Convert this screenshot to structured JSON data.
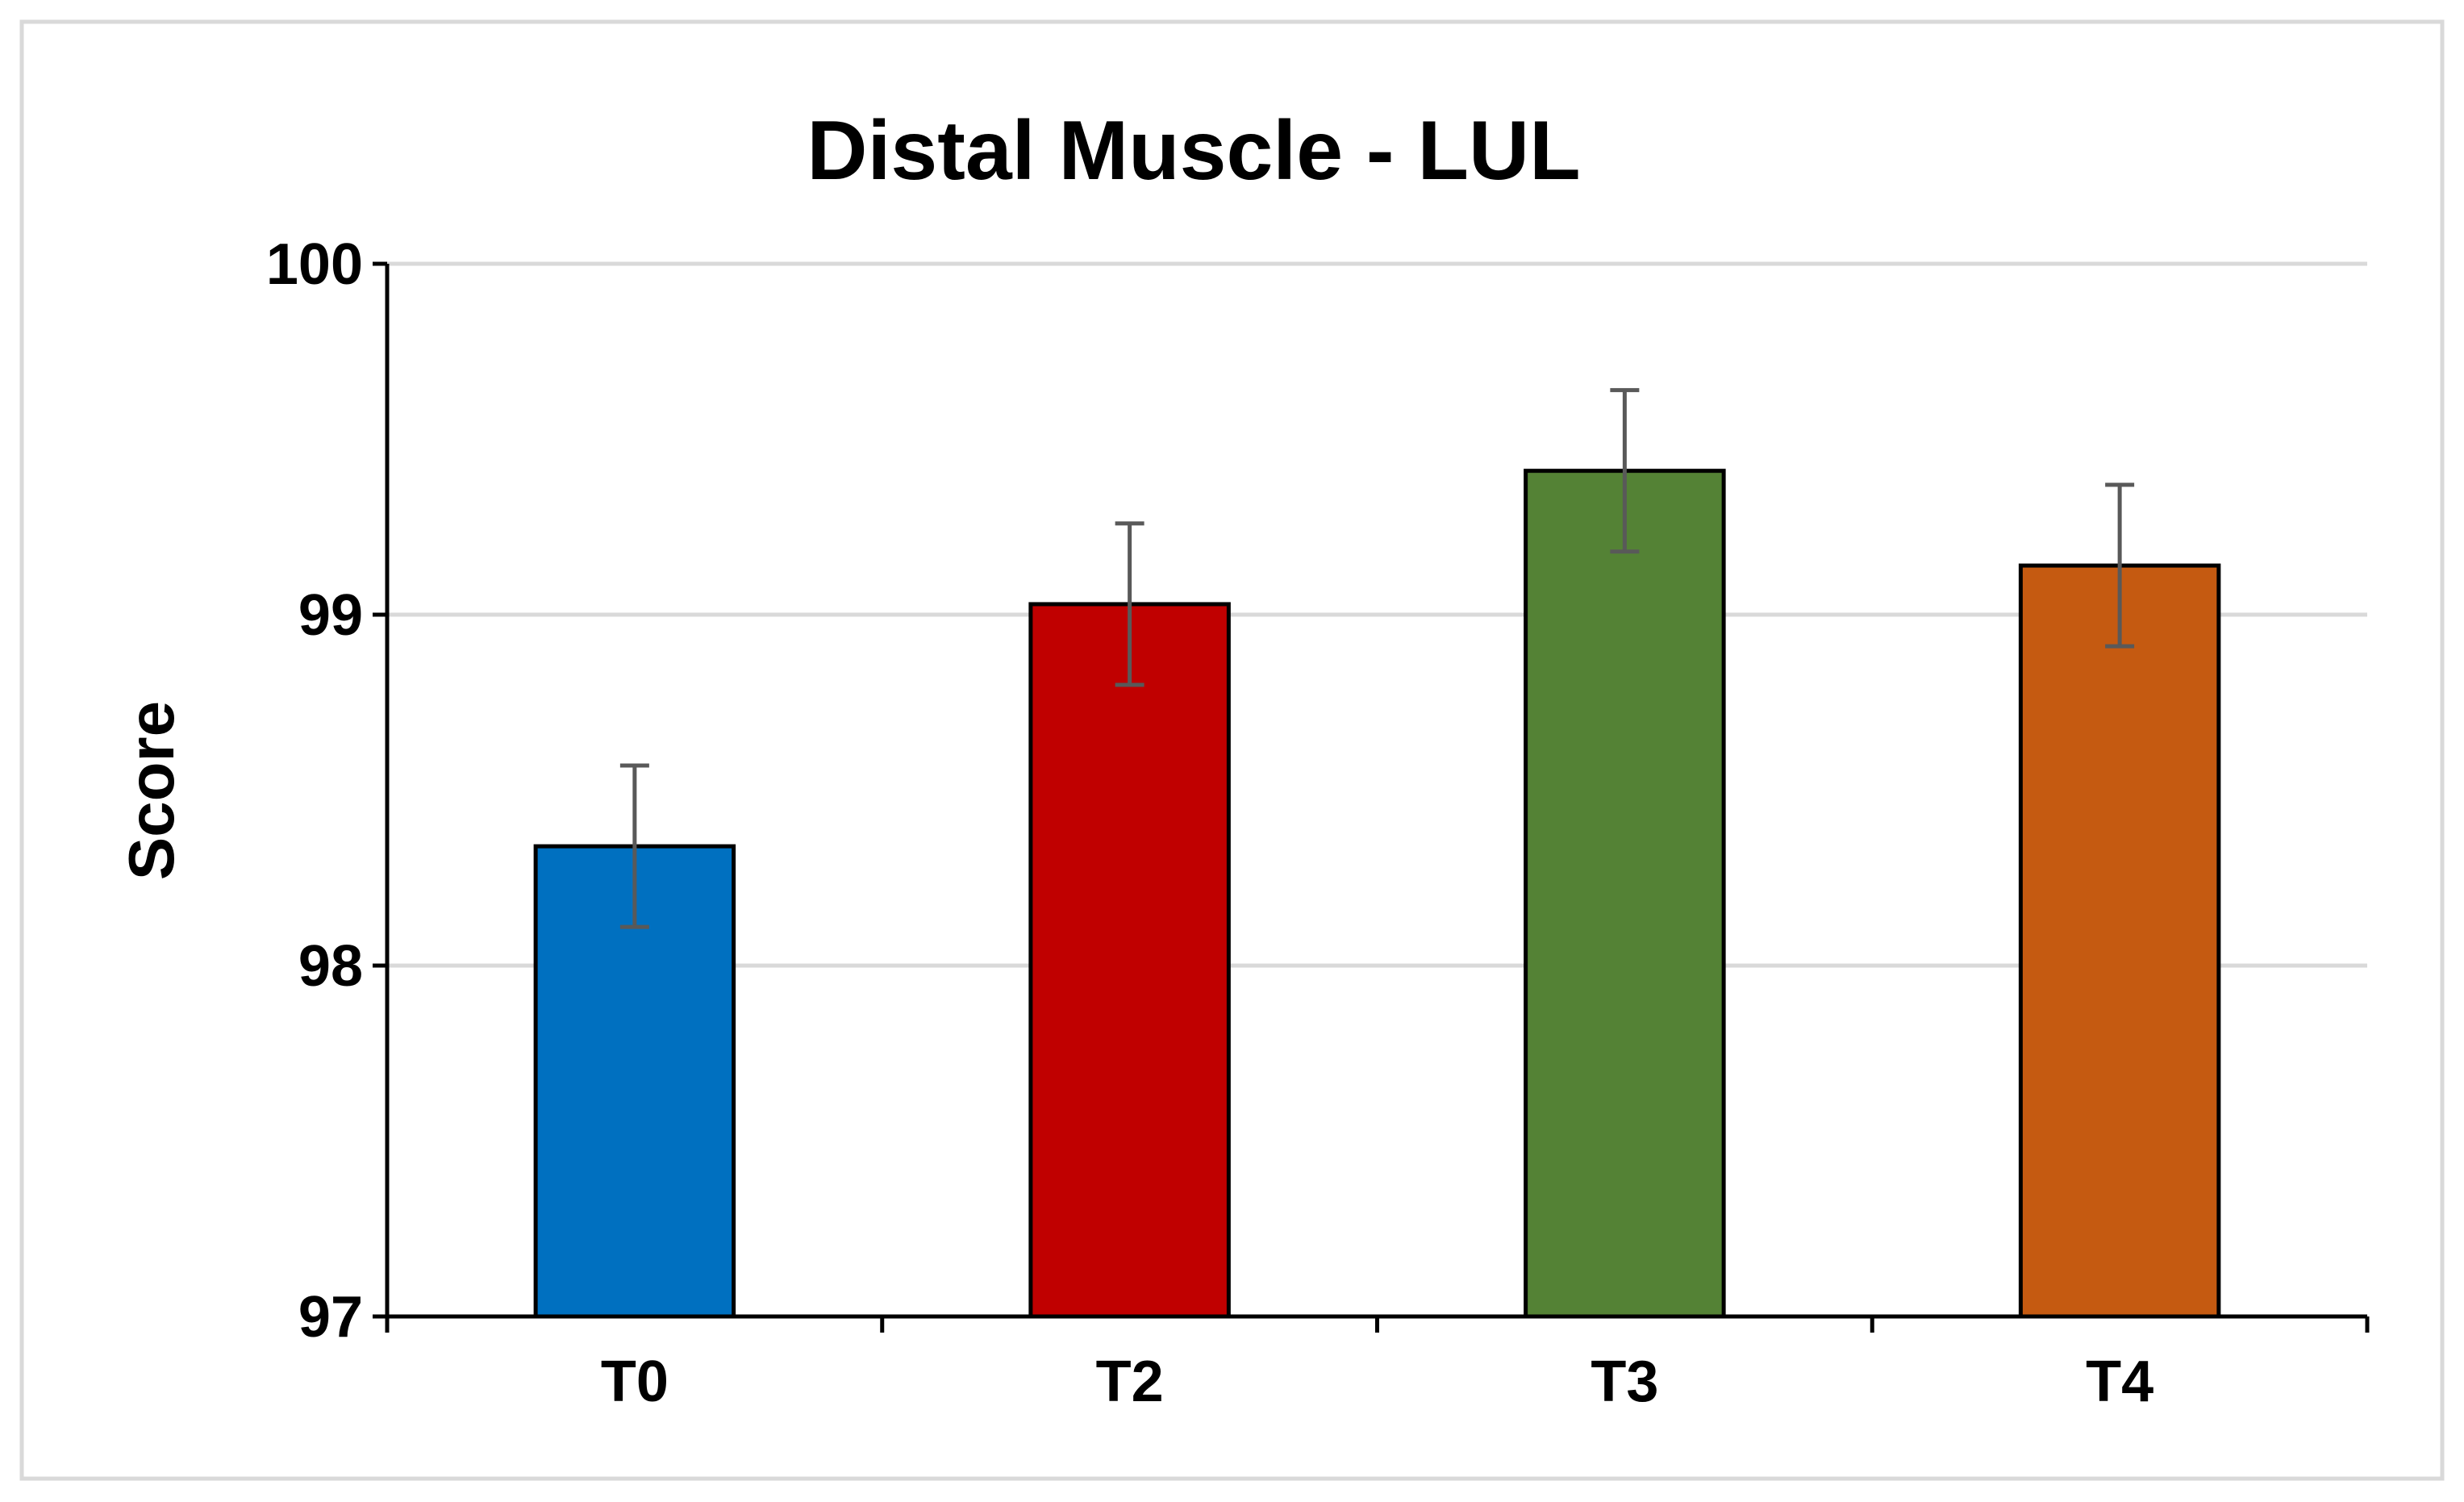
{
  "chart_data": {
    "type": "bar",
    "title": "Distal Muscle - LUL",
    "xlabel": "",
    "ylabel": "Score",
    "categories": [
      "T0",
      "T2",
      "T3",
      "T4"
    ],
    "values": [
      98.34,
      99.03,
      99.41,
      99.14
    ],
    "error": [
      0.23,
      0.23,
      0.23,
      0.23
    ],
    "colors": [
      "#0070C0",
      "#C00000",
      "#548235",
      "#C55A11"
    ],
    "ylim": [
      97,
      100
    ],
    "yticks": [
      97,
      98,
      99,
      100
    ],
    "grid": true,
    "legend": "none"
  }
}
